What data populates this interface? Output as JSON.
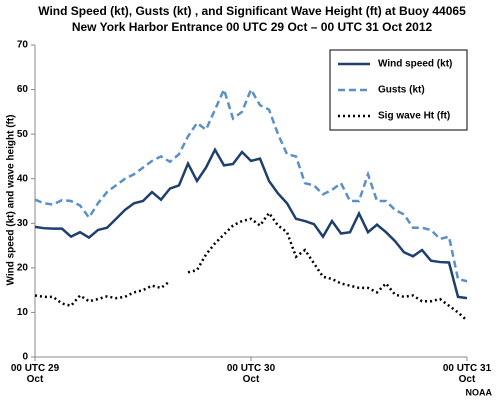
{
  "chart_data": {
    "type": "line",
    "title": "Wind Speed (kt), Gusts (kt) , and Significant Wave Height (ft) at Buoy 44065",
    "subtitle": "New York Harbor Entrance 00 UTC 29 Oct – 00 UTC 31 Oct 2012",
    "y_label": "Wind speed (kt) and wave height (ft)",
    "credit": "NOAA",
    "x": [
      0,
      1,
      2,
      3,
      4,
      5,
      6,
      7,
      8,
      9,
      10,
      11,
      12,
      13,
      14,
      15,
      16,
      17,
      18,
      19,
      20,
      21,
      22,
      23,
      24,
      25,
      26,
      27,
      28,
      29,
      30,
      31,
      32,
      33,
      34,
      35,
      36,
      37,
      38,
      39,
      40,
      41,
      42,
      43,
      44,
      45,
      46,
      47,
      48
    ],
    "xlim": [
      0,
      48
    ],
    "xticks": [
      {
        "value": 0,
        "label": "00 UTC 29 Oct"
      },
      {
        "value": 24,
        "label": "00 UTC 30 Oct"
      },
      {
        "value": 48,
        "label": "00 UTC 31 Oct"
      }
    ],
    "ylim": [
      0,
      70
    ],
    "yticks": [
      0,
      10,
      20,
      30,
      40,
      50,
      60,
      70
    ],
    "grid": false,
    "legend_position": "upper-right",
    "series": [
      {
        "name": "Wind speed (kt)",
        "color": "#1f3f6e",
        "dash": "solid",
        "values": [
          29.2,
          28.9,
          28.8,
          28.8,
          27,
          28,
          26.8,
          28.5,
          29,
          31,
          33,
          34.5,
          35,
          37,
          35.3,
          37.8,
          38.5,
          43.4,
          39.5,
          42.5,
          46.5,
          43,
          43.3,
          46,
          44,
          44.5,
          39.5,
          36.7,
          34.5,
          31,
          30.5,
          29.8,
          27,
          30.5,
          27.7,
          28,
          32.2,
          28,
          29.7,
          28,
          26,
          23.5,
          22.6,
          24,
          21.6,
          21.3,
          21.2,
          13.5,
          13.2
        ]
      },
      {
        "name": "Gusts (kt)",
        "color": "#5b8fc9",
        "dash": "dashed",
        "values": [
          35.3,
          34.5,
          34.2,
          35.2,
          35,
          34,
          31.3,
          34.5,
          37,
          38.5,
          40,
          41,
          42.5,
          44,
          45,
          43.8,
          45.5,
          49.5,
          52.5,
          51,
          55.5,
          60,
          53.5,
          55,
          60,
          56.5,
          55.5,
          50,
          45.5,
          45,
          39,
          38.5,
          36.5,
          37.5,
          39,
          35,
          35,
          41,
          35,
          35,
          33,
          32,
          29,
          29,
          28.5,
          26.5,
          27,
          17.5,
          17
        ]
      },
      {
        "name": "Sig wave Ht (ft)",
        "color": "#000000",
        "dash": "dotted",
        "values": [
          13.8,
          13.5,
          13.5,
          12,
          11.5,
          13.8,
          12.5,
          13,
          13.6,
          13.2,
          13.5,
          14.5,
          15,
          16,
          15.5,
          17,
          null,
          19,
          19.5,
          23,
          25.5,
          27.5,
          29.5,
          30.5,
          31,
          29.5,
          32.3,
          29.5,
          28,
          22.5,
          24,
          21,
          18,
          17.5,
          16.5,
          16,
          15.5,
          15.5,
          14.5,
          16.5,
          14,
          13.5,
          13.8,
          12.5,
          12.5,
          13,
          11.5,
          10,
          8.2
        ]
      }
    ]
  }
}
